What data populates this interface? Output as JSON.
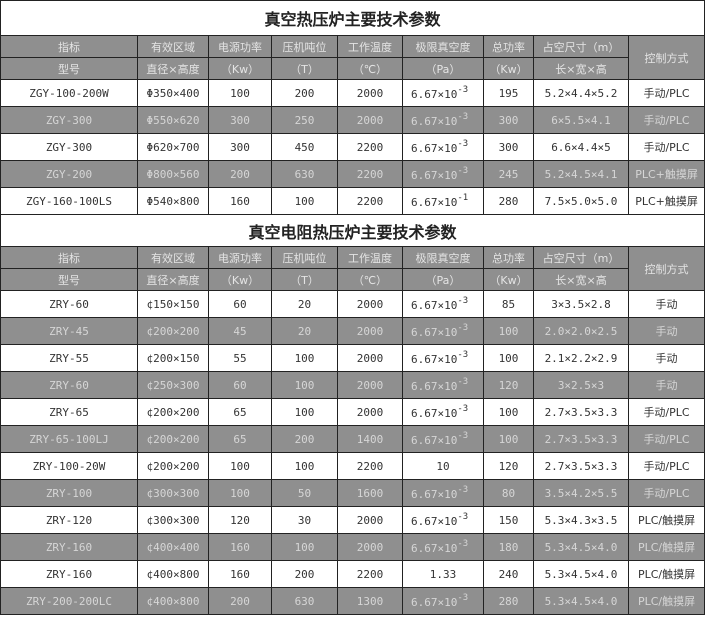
{
  "colors": {
    "row_gray": "#8f8f8f",
    "row_white": "#ffffff",
    "border": "#222222"
  },
  "headers": {
    "row1": [
      "指标",
      "有效区域",
      "电源功率",
      "压机吨位",
      "工作温度",
      "极限真空度",
      "总功率",
      "占空尺寸（m）",
      "控制方式"
    ],
    "row2": [
      "型号",
      "直径×高度",
      "（Kw）",
      "（T）",
      "（℃）",
      "（Pa）",
      "（Kw）",
      "长×宽×高"
    ]
  },
  "tables": [
    {
      "title": "真空热压炉主要技术参数",
      "rows": [
        {
          "model": "ZGY-100-200W",
          "zone": "Φ350×400",
          "power": "100",
          "tonnage": "200",
          "temp": "2000",
          "vac_base": "6.67×10",
          "vac_exp": "-3",
          "total": "195",
          "size": "5.2×4.4×5.2",
          "control": "手动/PLC",
          "shade": "white"
        },
        {
          "model": "ZGY-300",
          "zone": "Φ550×620",
          "power": "300",
          "tonnage": "250",
          "temp": "2000",
          "vac_base": "6.67×10",
          "vac_exp": "-3",
          "total": "300",
          "size": "6×5.5×4.1",
          "control": "手动/PLC",
          "shade": "gray"
        },
        {
          "model": "ZGY-300",
          "zone": "Φ620×700",
          "power": "300",
          "tonnage": "450",
          "temp": "2200",
          "vac_base": "6.67×10",
          "vac_exp": "-3",
          "total": "300",
          "size": "6.6×4.4×5",
          "control": "手动/PLC",
          "shade": "white"
        },
        {
          "model": "ZGY-200",
          "zone": "Φ800×560",
          "power": "200",
          "tonnage": "630",
          "temp": "2200",
          "vac_base": "6.67×10",
          "vac_exp": "-3",
          "total": "245",
          "size": "5.2×4.5×4.1",
          "control": "PLC+触摸屏",
          "shade": "gray"
        },
        {
          "model": "ZGY-160-100LS",
          "zone": "Φ540×800",
          "power": "160",
          "tonnage": "100",
          "temp": "2200",
          "vac_base": "6.67×10",
          "vac_exp": "-1",
          "total": "280",
          "size": "7.5×5.0×5.0",
          "control": "PLC+触摸屏",
          "shade": "white"
        }
      ]
    },
    {
      "title": "真空电阻热压炉主要技术参数",
      "rows": [
        {
          "model": "ZRY-60",
          "zone": "¢150×150",
          "power": "60",
          "tonnage": "20",
          "temp": "2000",
          "vac_base": "6.67×10",
          "vac_exp": "-3",
          "total": "85",
          "size": "3×3.5×2.8",
          "control": "手动",
          "shade": "white"
        },
        {
          "model": "ZRY-45",
          "zone": "¢200×200",
          "power": "45",
          "tonnage": "20",
          "temp": "2000",
          "vac_base": "6.67×10",
          "vac_exp": "-3",
          "total": "100",
          "size": "2.0×2.0×2.5",
          "control": "手动",
          "shade": "gray"
        },
        {
          "model": "ZRY-55",
          "zone": "¢200×150",
          "power": "55",
          "tonnage": "100",
          "temp": "2000",
          "vac_base": "6.67×10",
          "vac_exp": "-3",
          "total": "100",
          "size": "2.1×2.2×2.9",
          "control": "手动",
          "shade": "white"
        },
        {
          "model": "ZRY-60",
          "zone": "¢250×300",
          "power": "60",
          "tonnage": "100",
          "temp": "2000",
          "vac_base": "6.67×10",
          "vac_exp": "-3",
          "total": "120",
          "size": "3×2.5×3",
          "control": "手动",
          "shade": "gray"
        },
        {
          "model": "ZRY-65",
          "zone": "¢200×200",
          "power": "65",
          "tonnage": "100",
          "temp": "2000",
          "vac_base": "6.67×10",
          "vac_exp": "-3",
          "total": "100",
          "size": "2.7×3.5×3.3",
          "control": "手动/PLC",
          "shade": "white"
        },
        {
          "model": "ZRY-65-100LJ",
          "zone": "¢200×200",
          "power": "65",
          "tonnage": "200",
          "temp": "1400",
          "vac_base": "6.67×10",
          "vac_exp": "-3",
          "total": "100",
          "size": "2.7×3.5×3.3",
          "control": "手动/PLC",
          "shade": "gray"
        },
        {
          "model": "ZRY-100-20W",
          "zone": "¢200×200",
          "power": "100",
          "tonnage": "100",
          "temp": "2200",
          "vac_base": "10",
          "vac_exp": "",
          "total": "120",
          "size": "2.7×3.5×3.3",
          "control": "手动/PLC",
          "shade": "white"
        },
        {
          "model": "ZRY-100",
          "zone": "¢300×300",
          "power": "100",
          "tonnage": "50",
          "temp": "1600",
          "vac_base": "6.67×10",
          "vac_exp": "-3",
          "total": "80",
          "size": "3.5×4.2×5.5",
          "control": "手动/PLC",
          "shade": "gray"
        },
        {
          "model": "ZRY-120",
          "zone": "¢300×300",
          "power": "120",
          "tonnage": "30",
          "temp": "2000",
          "vac_base": "6.67×10",
          "vac_exp": "-3",
          "total": "150",
          "size": "5.3×4.3×3.5",
          "control": "PLC/触摸屏",
          "shade": "white"
        },
        {
          "model": "ZRY-160",
          "zone": "¢400×400",
          "power": "160",
          "tonnage": "100",
          "temp": "2000",
          "vac_base": "6.67×10",
          "vac_exp": "-3",
          "total": "180",
          "size": "5.3×4.5×4.0",
          "control": "PLC/触摸屏",
          "shade": "gray"
        },
        {
          "model": "ZRY-160",
          "zone": "¢400×800",
          "power": "160",
          "tonnage": "200",
          "temp": "2200",
          "vac_base": "1.33",
          "vac_exp": "",
          "total": "240",
          "size": "5.3×4.5×4.0",
          "control": "PLC/触摸屏",
          "shade": "white"
        },
        {
          "model": "ZRY-200-200LC",
          "zone": "¢400×800",
          "power": "200",
          "tonnage": "630",
          "temp": "1300",
          "vac_base": "6.67×10",
          "vac_exp": "-3",
          "total": "280",
          "size": "5.3×4.5×4.0",
          "control": "PLC/触摸屏",
          "shade": "gray"
        }
      ]
    }
  ]
}
